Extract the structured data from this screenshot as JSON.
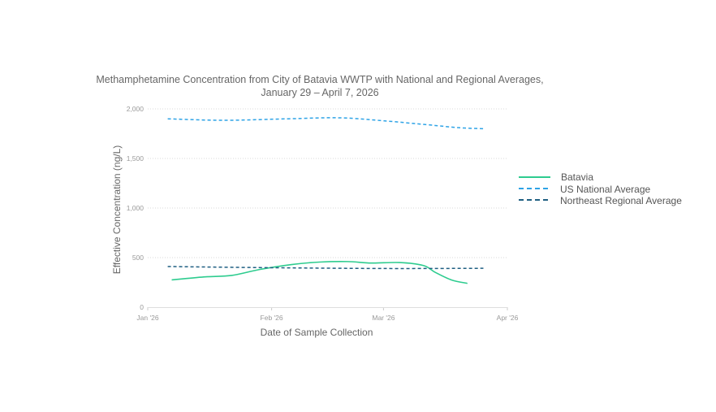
{
  "chart_data": {
    "type": "line",
    "title": "Methamphetamine Concentration from City of Batavia WWTP with National and Regional Averages,",
    "subtitle": "January 29 – April 7, 2026",
    "xlabel": "Date of Sample Collection",
    "ylabel": "Effective Concentration (ng/L)",
    "x_ticks": [
      {
        "label": "Jan '26",
        "date": "2026-01-01"
      },
      {
        "label": "Feb '26",
        "date": "2026-02-01"
      },
      {
        "label": "Mar '26",
        "date": "2026-03-01"
      },
      {
        "label": "Apr '26",
        "date": "2026-04-01"
      }
    ],
    "y_ticks": [
      {
        "label": "0",
        "value": 0
      },
      {
        "label": "500",
        "value": 500
      },
      {
        "label": "1,000",
        "value": 1000
      },
      {
        "label": "1,500",
        "value": 1500
      },
      {
        "label": "2,000",
        "value": 2000
      }
    ],
    "xlim": [
      "2026-01-01",
      "2026-04-01"
    ],
    "ylim": [
      0,
      2000
    ],
    "grid": true,
    "legend_position": "right",
    "series": [
      {
        "name": "Batavia",
        "style": "solid",
        "color": "#2ecc8f",
        "points": [
          {
            "x": "2026-01-07",
            "y": 275
          },
          {
            "x": "2026-01-15",
            "y": 305
          },
          {
            "x": "2026-01-22",
            "y": 320
          },
          {
            "x": "2026-01-29",
            "y": 380
          },
          {
            "x": "2026-02-06",
            "y": 430
          },
          {
            "x": "2026-02-13",
            "y": 455
          },
          {
            "x": "2026-02-20",
            "y": 460
          },
          {
            "x": "2026-02-26",
            "y": 445
          },
          {
            "x": "2026-03-05",
            "y": 450
          },
          {
            "x": "2026-03-11",
            "y": 420
          },
          {
            "x": "2026-03-14",
            "y": 350
          },
          {
            "x": "2026-03-18",
            "y": 275
          },
          {
            "x": "2026-03-22",
            "y": 240
          }
        ]
      },
      {
        "name": "US National Average",
        "style": "dashed",
        "color": "#2ea3e6",
        "points": [
          {
            "x": "2026-01-06",
            "y": 1900
          },
          {
            "x": "2026-01-20",
            "y": 1885
          },
          {
            "x": "2026-02-05",
            "y": 1900
          },
          {
            "x": "2026-02-18",
            "y": 1910
          },
          {
            "x": "2026-03-01",
            "y": 1880
          },
          {
            "x": "2026-03-12",
            "y": 1840
          },
          {
            "x": "2026-03-20",
            "y": 1810
          },
          {
            "x": "2026-03-26",
            "y": 1800
          }
        ]
      },
      {
        "name": "Northeast Regional Average",
        "style": "dashed",
        "color": "#1f5f82",
        "points": [
          {
            "x": "2026-01-06",
            "y": 410
          },
          {
            "x": "2026-02-01",
            "y": 398
          },
          {
            "x": "2026-03-01",
            "y": 390
          },
          {
            "x": "2026-03-26",
            "y": 392
          }
        ]
      }
    ]
  }
}
